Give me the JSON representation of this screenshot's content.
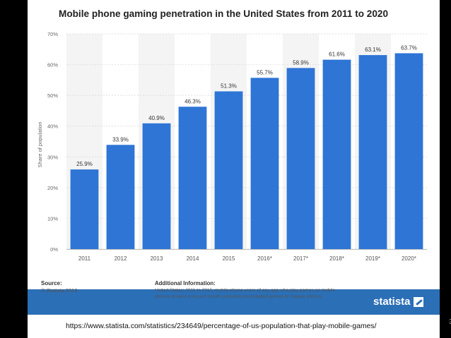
{
  "chart_data": {
    "type": "bar",
    "title": "Mobile phone gaming penetration in the United States from 2011 to 2020",
    "categories": [
      "2011",
      "2012",
      "2013",
      "2014",
      "2015",
      "2016*",
      "2017*",
      "2018*",
      "2019*",
      "2020*"
    ],
    "values": [
      25.9,
      33.9,
      40.9,
      46.3,
      51.3,
      55.7,
      58.9,
      61.6,
      63.1,
      63.7
    ],
    "value_labels": [
      "25.9%",
      "33.9%",
      "40.9%",
      "46.3%",
      "51.3%",
      "55.7%",
      "58.9%",
      "61.6%",
      "63.1%",
      "63.7%"
    ],
    "xlabel": "",
    "ylabel": "Share of population",
    "ylim": [
      0,
      70
    ],
    "yticks": [
      0,
      10,
      20,
      30,
      40,
      50,
      60,
      70
    ],
    "ytick_labels": [
      "0%",
      "10%",
      "20%",
      "30%",
      "40%",
      "50%",
      "60%",
      "70%"
    ],
    "grid": true,
    "legend": "none"
  },
  "colors": {
    "bar": "#2e75d6",
    "band": "#f4f4f4",
    "grid": "#d6d6d6",
    "footer": "#2b6fb6"
  },
  "footer": {
    "source_label": "Source:",
    "source_text": "© Statista 2016",
    "additional_label": "Additional Information:",
    "additional_text": "United States; 2011 to 2015; mobile phone users of any age who play games on mobile phones at least once per month; excludes pre-installed games on feature phones",
    "logo_text": "statista"
  },
  "slide": {
    "page_number": "3",
    "url": "https://www.statista.com/statistics/234649/percentage-of-us-population-that-play-mobile-games/"
  }
}
